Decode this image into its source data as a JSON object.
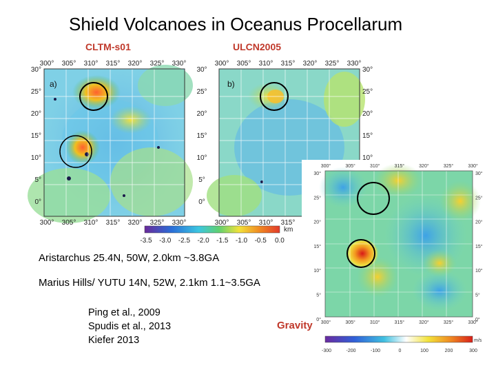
{
  "title": "Shield Volcanoes in Oceanus Procellarum",
  "labels": {
    "left_map": "CLTM-s01",
    "right_map": "ULCN2005",
    "gravity": "Gravity"
  },
  "maps": {
    "panel_a": "a)",
    "panel_b": "b)",
    "lon_ticks": [
      "300°",
      "305°",
      "310°",
      "315°",
      "320°",
      "325°",
      "330°"
    ],
    "lat_ticks": [
      "30°",
      "25°",
      "20°",
      "15°",
      "10°",
      "5°",
      "0°"
    ],
    "colorbar_ticks": [
      "-3.5",
      "-3.0",
      "-2.5",
      "-2.0",
      "-1.5",
      "-1.0",
      "-0.5",
      "0.0"
    ],
    "colorbar_unit": "km"
  },
  "gravity_map": {
    "lon_ticks": [
      "300°",
      "305°",
      "310°",
      "315°",
      "320°",
      "325°",
      "330°"
    ],
    "lat_ticks": [
      "30°",
      "25°",
      "20°",
      "15°",
      "10°",
      "5°",
      "0°"
    ],
    "colorbar_ticks": [
      "-300",
      "-200",
      "-100",
      "0",
      "100",
      "200",
      "300"
    ],
    "colorbar_unit": "m/s"
  },
  "captions": {
    "aristarchus": "Aristarchus 25.4N, 50W, 2.0km  ~3.8GA",
    "marius": "Marius Hills/ YUTU 14N, 52W, 2.1km 1.1~3.5GA"
  },
  "references": [
    "Ping  et al., 2009",
    "Spudis et al., 2013",
    "Kiefer 2013"
  ]
}
